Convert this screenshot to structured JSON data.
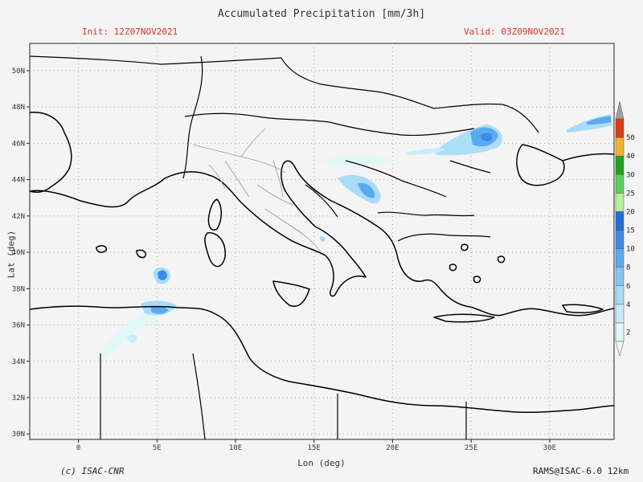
{
  "header": {
    "title": "Accumulated Precipitation [mm/3h]",
    "init": "Init: 12Z07NOV2021",
    "valid": "Valid: 03Z09NOV2021"
  },
  "axes": {
    "xlabel": "Lon (deg)",
    "ylabel": "Lat (deg)",
    "x_ticks": [
      "0",
      "5E",
      "10E",
      "15E",
      "20E",
      "25E",
      "30E"
    ],
    "x_tick_values": [
      0,
      5,
      10,
      15,
      20,
      25,
      30
    ],
    "y_ticks": [
      "30N",
      "32N",
      "34N",
      "36N",
      "38N",
      "40N",
      "42N",
      "44N",
      "46N",
      "48N",
      "50N"
    ],
    "y_tick_values": [
      30,
      32,
      34,
      36,
      38,
      40,
      42,
      44,
      46,
      48,
      50
    ],
    "lon_range": [
      -3.1,
      34.1
    ],
    "lat_range": [
      29.7,
      51.5
    ]
  },
  "colorbar": {
    "labels": [
      "2",
      "4",
      "6",
      "8",
      "10",
      "15",
      "20",
      "25",
      "30",
      "40",
      "50"
    ],
    "colors": [
      "#e0f8f8",
      "#c8ecfa",
      "#a8dcf6",
      "#82c4f2",
      "#5aaaf0",
      "#3a8ce8",
      "#1e6ed8",
      "#b4f0a0",
      "#5ad05a",
      "#1ea41e",
      "#f0b42a",
      "#e03a14",
      "#a0a0a0"
    ]
  },
  "footer": {
    "credit": "(c) ISAC-CNR",
    "model": "RAMS@ISAC-6.0 12km"
  }
}
